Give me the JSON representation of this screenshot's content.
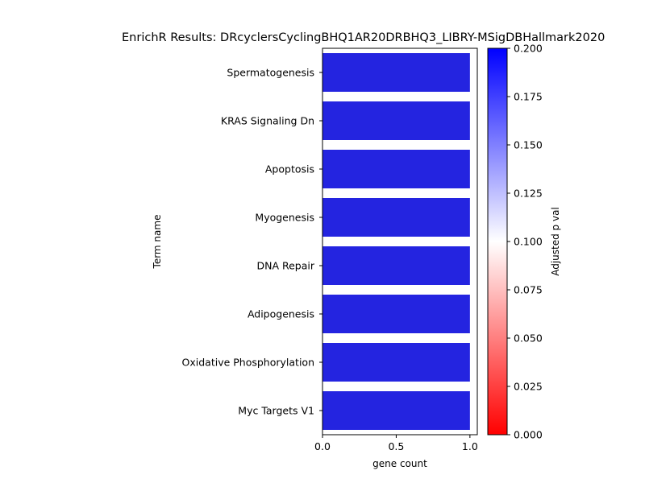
{
  "chart_data": {
    "type": "bar",
    "orientation": "horizontal",
    "title": "EnrichR Results: DRcyclersCyclingBHQ1AR20DRBHQ3_LIBRY-MSigDBHallmark2020",
    "xlabel": "gene count",
    "ylabel": "Term name",
    "xlim": [
      0,
      1.05
    ],
    "xticks": [
      0.0,
      0.5,
      1.0
    ],
    "xtick_labels": [
      "0.0",
      "0.5",
      "1.0"
    ],
    "categories": [
      "Spermatogenesis",
      "KRAS Signaling Dn",
      "Apoptosis",
      "Myogenesis",
      "DNA Repair",
      "Adipogenesis",
      "Oxidative Phosphorylation",
      "Myc Targets V1"
    ],
    "values": [
      1,
      1,
      1,
      1,
      1,
      1,
      1,
      1
    ],
    "bar_color": "#2424e0",
    "colorbar": {
      "label": "Adjusted p val",
      "range": [
        0.0,
        0.2
      ],
      "ticks": [
        0.0,
        0.025,
        0.05,
        0.075,
        0.1,
        0.125,
        0.15,
        0.175,
        0.2
      ],
      "tick_labels": [
        "0.000",
        "0.025",
        "0.050",
        "0.075",
        "0.100",
        "0.125",
        "0.150",
        "0.175",
        "0.200"
      ],
      "colors": [
        "#ff0000",
        "#ffffff",
        "#0000ff"
      ]
    },
    "grid": false,
    "legend": "none"
  }
}
